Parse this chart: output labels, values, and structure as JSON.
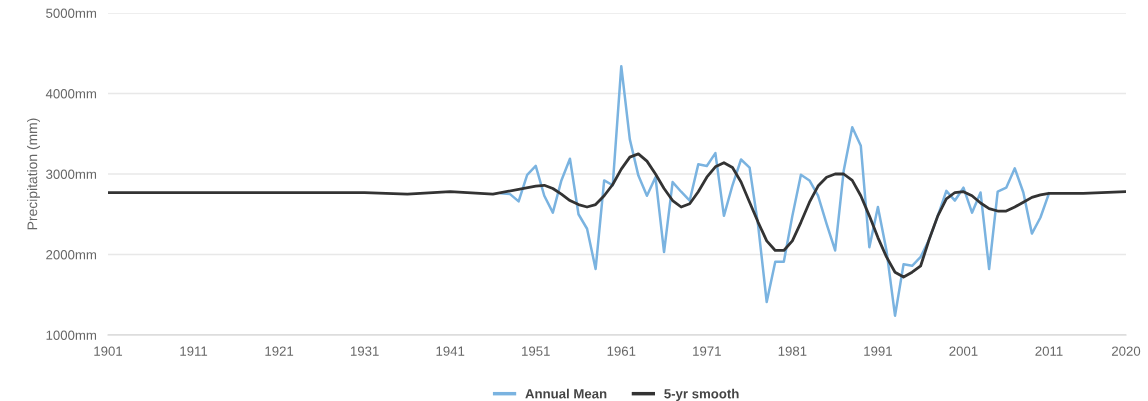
{
  "chart_data": {
    "type": "line",
    "ylabel": "Precipitation (mm)",
    "xlim": [
      1901,
      2020
    ],
    "xticks": [
      1901,
      1911,
      1921,
      1931,
      1941,
      1951,
      1961,
      1971,
      1981,
      1991,
      2001,
      2011,
      2020
    ],
    "ylim": [
      1000,
      5000
    ],
    "yticks": [
      {
        "value": 1000,
        "label": "1000mm"
      },
      {
        "value": 2000,
        "label": "2000mm"
      },
      {
        "value": 3000,
        "label": "3000mm"
      },
      {
        "value": 4000,
        "label": "4000mm"
      },
      {
        "value": 5000,
        "label": "5000mm"
      }
    ],
    "grid": "y",
    "legend": "bottom",
    "marker": "none",
    "line_style": "solid",
    "series": [
      {
        "name": "Annual Mean",
        "color": "#7ab3e0",
        "x": [
          1947,
          1948,
          1949,
          1950,
          1951,
          1952,
          1953,
          1954,
          1955,
          1956,
          1957,
          1958,
          1959,
          1960,
          1961,
          1962,
          1963,
          1964,
          1965,
          1966,
          1967,
          1968,
          1969,
          1970,
          1971,
          1972,
          1973,
          1974,
          1975,
          1976,
          1977,
          1978,
          1979,
          1980,
          1981,
          1982,
          1983,
          1984,
          1985,
          1986,
          1987,
          1988,
          1989,
          1990,
          1991,
          1992,
          1993,
          1994,
          1995,
          1996,
          1997,
          1998,
          1999,
          2000,
          2001,
          2002,
          2003,
          2004,
          2005,
          2006,
          2007,
          2008,
          2009,
          2010,
          2011
        ],
        "values": [
          2760,
          2750,
          2660,
          2990,
          3100,
          2730,
          2520,
          2920,
          3190,
          2500,
          2320,
          1820,
          2920,
          2860,
          4340,
          3430,
          2980,
          2730,
          2960,
          2030,
          2900,
          2780,
          2670,
          3120,
          3100,
          3260,
          2480,
          2860,
          3180,
          3080,
          2360,
          1410,
          1910,
          1910,
          2480,
          2990,
          2920,
          2730,
          2380,
          2050,
          3040,
          3580,
          3350,
          2090,
          2590,
          2050,
          1240,
          1880,
          1860,
          1970,
          2190,
          2480,
          2790,
          2670,
          2830,
          2520,
          2770,
          1820,
          2780,
          2830,
          3070,
          2770,
          2260,
          2460,
          2760
        ]
      },
      {
        "name": "5-yr smooth",
        "color": "#333333",
        "x": [
          1901,
          1911,
          1921,
          1931,
          1936,
          1941,
          1946,
          1951,
          1952,
          1953,
          1954,
          1955,
          1956,
          1957,
          1958,
          1959,
          1960,
          1961,
          1962,
          1963,
          1964,
          1965,
          1966,
          1967,
          1968,
          1969,
          1970,
          1971,
          1972,
          1973,
          1974,
          1975,
          1976,
          1977,
          1978,
          1979,
          1980,
          1981,
          1982,
          1983,
          1984,
          1985,
          1986,
          1987,
          1988,
          1989,
          1990,
          1991,
          1992,
          1993,
          1994,
          1995,
          1996,
          1997,
          1998,
          1999,
          2000,
          2001,
          2002,
          2003,
          2004,
          2005,
          2006,
          2007,
          2008,
          2009,
          2010,
          2011,
          2015,
          2020
        ],
        "values": [
          2770,
          2770,
          2770,
          2770,
          2750,
          2780,
          2750,
          2850,
          2860,
          2820,
          2750,
          2670,
          2620,
          2590,
          2620,
          2730,
          2870,
          3060,
          3210,
          3250,
          3160,
          3000,
          2820,
          2670,
          2590,
          2630,
          2780,
          2960,
          3090,
          3140,
          3080,
          2900,
          2650,
          2400,
          2170,
          2050,
          2050,
          2170,
          2400,
          2650,
          2850,
          2960,
          3000,
          3000,
          2920,
          2730,
          2480,
          2210,
          1970,
          1780,
          1720,
          1780,
          1860,
          2190,
          2480,
          2690,
          2770,
          2780,
          2730,
          2640,
          2570,
          2540,
          2540,
          2590,
          2650,
          2710,
          2740,
          2760,
          2760,
          2780
        ]
      }
    ]
  }
}
